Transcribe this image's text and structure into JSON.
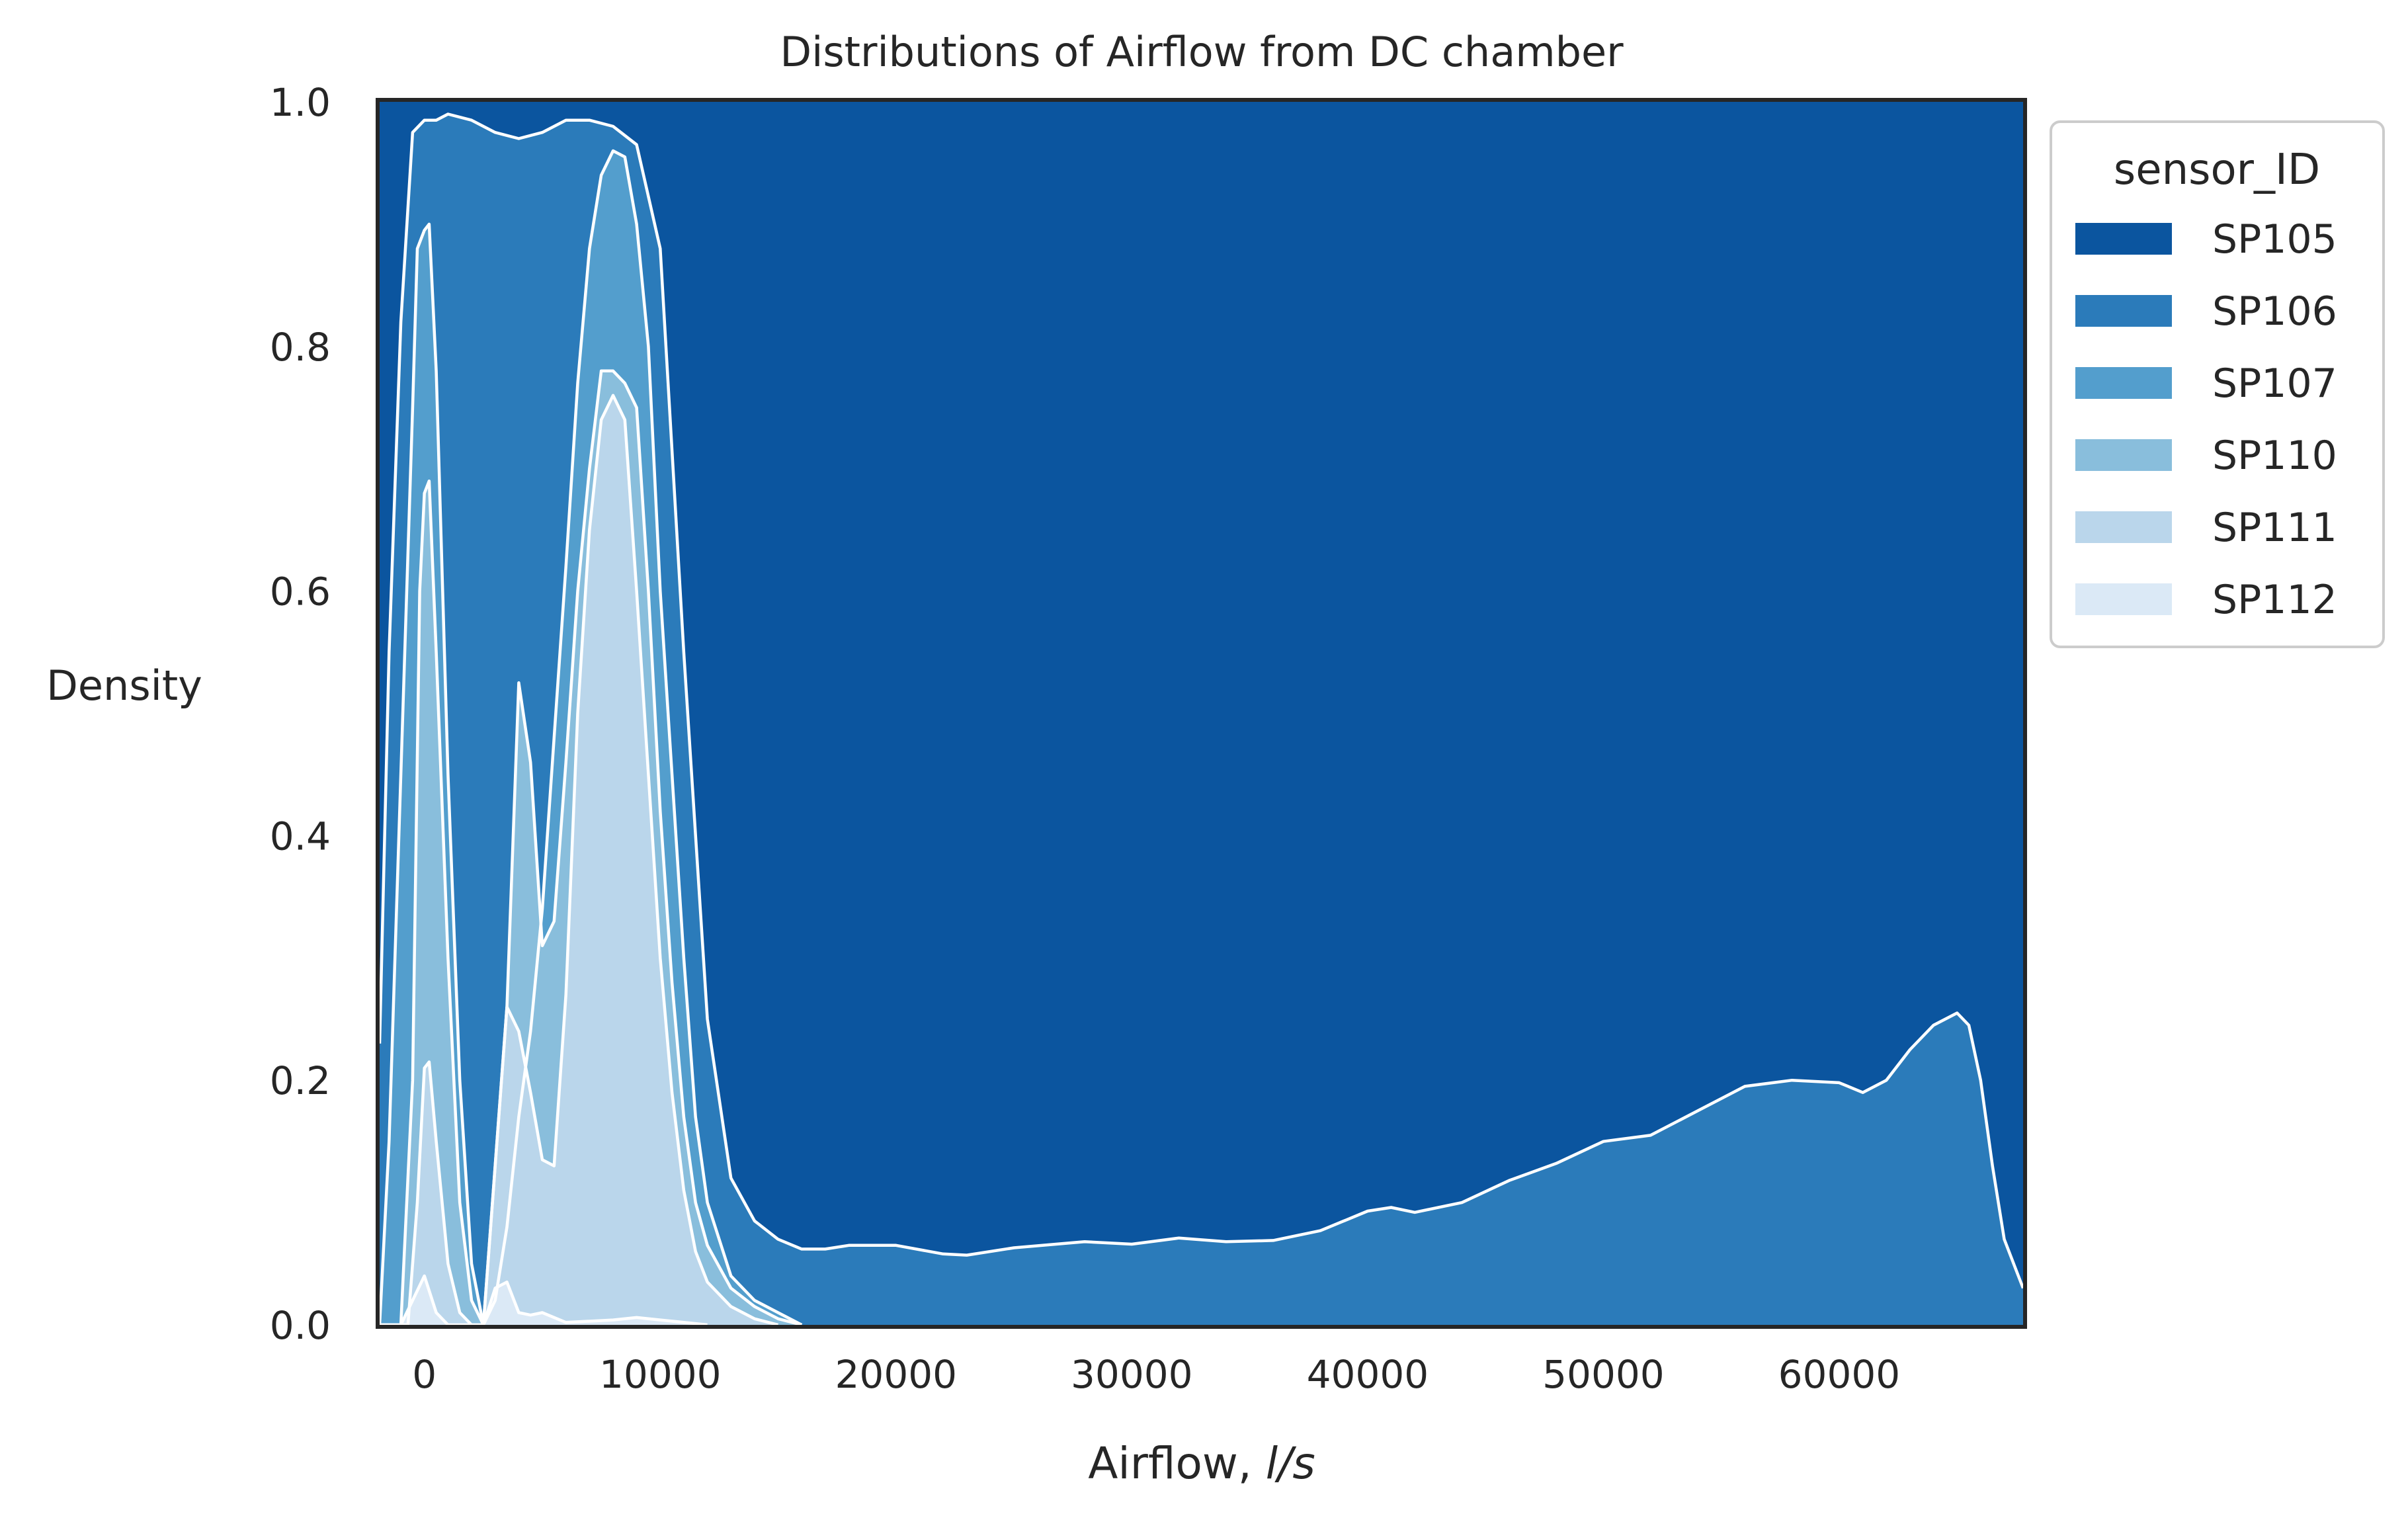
{
  "chart_data": {
    "type": "area",
    "stacking": "fill",
    "title": "Distributions of Airflow from DC chamber",
    "xlabel": "Airflow, l/s",
    "xlabel_plain": "Airflow, ",
    "xlabel_italic": "l/s",
    "ylabel": "Density",
    "xlim": [
      -1900,
      67800
    ],
    "ylim": [
      0,
      1.0
    ],
    "grid": false,
    "legend_title": "sensor_ID",
    "legend_placement": "outside-top-right",
    "xticks": [
      {
        "value": 0,
        "label": "0"
      },
      {
        "value": 10000,
        "label": "10000"
      },
      {
        "value": 20000,
        "label": "20000"
      },
      {
        "value": 30000,
        "label": "30000"
      },
      {
        "value": 40000,
        "label": "40000"
      },
      {
        "value": 50000,
        "label": "50000"
      },
      {
        "value": 60000,
        "label": "60000"
      }
    ],
    "yticks": [
      {
        "value": 0.0,
        "label": "0.0"
      },
      {
        "value": 0.2,
        "label": "0.2"
      },
      {
        "value": 0.4,
        "label": "0.4"
      },
      {
        "value": 0.6,
        "label": "0.6"
      },
      {
        "value": 0.8,
        "label": "0.8"
      },
      {
        "value": 1.0,
        "label": "1.0"
      }
    ],
    "series": [
      {
        "name": "SP105",
        "color": "#0b559f"
      },
      {
        "name": "SP106",
        "color": "#2b7bba"
      },
      {
        "name": "SP107",
        "color": "#539ecd"
      },
      {
        "name": "SP110",
        "color": "#89bedc"
      },
      {
        "name": "SP111",
        "color": "#bad6eb"
      },
      {
        "name": "SP112",
        "color": "#dbe9f6"
      }
    ],
    "cumulative_boundaries_note": "Upper edge of each stacked band (cumulative fraction). SP105 fills from the SP106 boundary to 1.0.",
    "boundaries": {
      "SP106": [
        [
          -1900,
          0.23
        ],
        [
          -1500,
          0.55
        ],
        [
          -1000,
          0.82
        ],
        [
          -500,
          0.975
        ],
        [
          0,
          0.985
        ],
        [
          500,
          0.985
        ],
        [
          1000,
          0.99
        ],
        [
          2000,
          0.985
        ],
        [
          3000,
          0.975
        ],
        [
          4000,
          0.97
        ],
        [
          5000,
          0.975
        ],
        [
          6000,
          0.985
        ],
        [
          7000,
          0.985
        ],
        [
          8000,
          0.98
        ],
        [
          9000,
          0.965
        ],
        [
          10000,
          0.88
        ],
        [
          11000,
          0.55
        ],
        [
          12000,
          0.25
        ],
        [
          13000,
          0.12
        ],
        [
          14000,
          0.085
        ],
        [
          15000,
          0.07
        ],
        [
          16000,
          0.062
        ],
        [
          17000,
          0.062
        ],
        [
          18000,
          0.065
        ],
        [
          20000,
          0.065
        ],
        [
          22000,
          0.058
        ],
        [
          23000,
          0.057
        ],
        [
          25000,
          0.063
        ],
        [
          28000,
          0.068
        ],
        [
          30000,
          0.066
        ],
        [
          32000,
          0.071
        ],
        [
          34000,
          0.068
        ],
        [
          36000,
          0.069
        ],
        [
          38000,
          0.077
        ],
        [
          40000,
          0.093
        ],
        [
          41000,
          0.096
        ],
        [
          42000,
          0.092
        ],
        [
          44000,
          0.1
        ],
        [
          46000,
          0.118
        ],
        [
          48000,
          0.132
        ],
        [
          50000,
          0.15
        ],
        [
          52000,
          0.155
        ],
        [
          54000,
          0.175
        ],
        [
          56000,
          0.195
        ],
        [
          58000,
          0.2
        ],
        [
          60000,
          0.198
        ],
        [
          61000,
          0.19
        ],
        [
          62000,
          0.2
        ],
        [
          63000,
          0.225
        ],
        [
          64000,
          0.245
        ],
        [
          65000,
          0.255
        ],
        [
          65500,
          0.245
        ],
        [
          66000,
          0.2
        ],
        [
          66500,
          0.13
        ],
        [
          67000,
          0.07
        ],
        [
          67800,
          0.03
        ]
      ],
      "SP107": [
        [
          -1900,
          0.0
        ],
        [
          -1500,
          0.15
        ],
        [
          -1000,
          0.45
        ],
        [
          -500,
          0.75
        ],
        [
          -300,
          0.88
        ],
        [
          0,
          0.895
        ],
        [
          200,
          0.9
        ],
        [
          500,
          0.78
        ],
        [
          1000,
          0.45
        ],
        [
          1500,
          0.2
        ],
        [
          2000,
          0.05
        ],
        [
          2500,
          0.0
        ],
        [
          3000,
          0.02
        ],
        [
          3500,
          0.08
        ],
        [
          4000,
          0.17
        ],
        [
          4500,
          0.24
        ],
        [
          5000,
          0.34
        ],
        [
          5500,
          0.48
        ],
        [
          6000,
          0.62
        ],
        [
          6500,
          0.77
        ],
        [
          7000,
          0.88
        ],
        [
          7500,
          0.94
        ],
        [
          8000,
          0.96
        ],
        [
          8500,
          0.955
        ],
        [
          9000,
          0.9
        ],
        [
          9500,
          0.8
        ],
        [
          10000,
          0.6
        ],
        [
          10500,
          0.45
        ],
        [
          11000,
          0.3
        ],
        [
          11500,
          0.17
        ],
        [
          12000,
          0.1
        ],
        [
          13000,
          0.04
        ],
        [
          14000,
          0.02
        ],
        [
          15000,
          0.01
        ],
        [
          16000,
          0.0
        ]
      ],
      "SP110": [
        [
          -1900,
          0.0
        ],
        [
          -1000,
          0.0
        ],
        [
          -500,
          0.2
        ],
        [
          -200,
          0.6
        ],
        [
          0,
          0.68
        ],
        [
          200,
          0.69
        ],
        [
          500,
          0.55
        ],
        [
          1000,
          0.3
        ],
        [
          1500,
          0.1
        ],
        [
          2000,
          0.02
        ],
        [
          2500,
          0.0
        ],
        [
          3000,
          0.13
        ],
        [
          3500,
          0.26
        ],
        [
          4000,
          0.525
        ],
        [
          4500,
          0.46
        ],
        [
          5000,
          0.31
        ],
        [
          5500,
          0.33
        ],
        [
          6000,
          0.46
        ],
        [
          6500,
          0.6
        ],
        [
          7000,
          0.7
        ],
        [
          7500,
          0.78
        ],
        [
          8000,
          0.78
        ],
        [
          8500,
          0.77
        ],
        [
          9000,
          0.75
        ],
        [
          9500,
          0.6
        ],
        [
          10000,
          0.42
        ],
        [
          10500,
          0.28
        ],
        [
          11000,
          0.17
        ],
        [
          11500,
          0.1
        ],
        [
          12000,
          0.065
        ],
        [
          13000,
          0.03
        ],
        [
          14000,
          0.015
        ],
        [
          15000,
          0.005
        ],
        [
          16000,
          0.0
        ]
      ],
      "SP111": [
        [
          -1900,
          0.0
        ],
        [
          -700,
          0.0
        ],
        [
          -300,
          0.1
        ],
        [
          0,
          0.21
        ],
        [
          200,
          0.215
        ],
        [
          500,
          0.15
        ],
        [
          1000,
          0.05
        ],
        [
          1500,
          0.01
        ],
        [
          2000,
          0.0
        ],
        [
          2500,
          0.0
        ],
        [
          3000,
          0.13
        ],
        [
          3500,
          0.26
        ],
        [
          4000,
          0.24
        ],
        [
          4500,
          0.19
        ],
        [
          5000,
          0.135
        ],
        [
          5500,
          0.13
        ],
        [
          6000,
          0.27
        ],
        [
          6500,
          0.5
        ],
        [
          7000,
          0.65
        ],
        [
          7500,
          0.74
        ],
        [
          8000,
          0.76
        ],
        [
          8500,
          0.74
        ],
        [
          9000,
          0.6
        ],
        [
          9500,
          0.45
        ],
        [
          10000,
          0.3
        ],
        [
          10500,
          0.19
        ],
        [
          11000,
          0.11
        ],
        [
          11500,
          0.06
        ],
        [
          12000,
          0.035
        ],
        [
          13000,
          0.015
        ],
        [
          14000,
          0.005
        ],
        [
          15000,
          0.0
        ]
      ],
      "SP112": [
        [
          -1900,
          0.0
        ],
        [
          -1000,
          0.0
        ],
        [
          -500,
          0.02
        ],
        [
          0,
          0.04
        ],
        [
          500,
          0.01
        ],
        [
          1000,
          0.0
        ],
        [
          2500,
          0.0
        ],
        [
          3000,
          0.03
        ],
        [
          3500,
          0.035
        ],
        [
          4000,
          0.01
        ],
        [
          4500,
          0.008
        ],
        [
          5000,
          0.01
        ],
        [
          6000,
          0.002
        ],
        [
          8000,
          0.004
        ],
        [
          9000,
          0.006
        ],
        [
          10000,
          0.004
        ],
        [
          11000,
          0.002
        ],
        [
          12000,
          0.0
        ]
      ]
    }
  }
}
